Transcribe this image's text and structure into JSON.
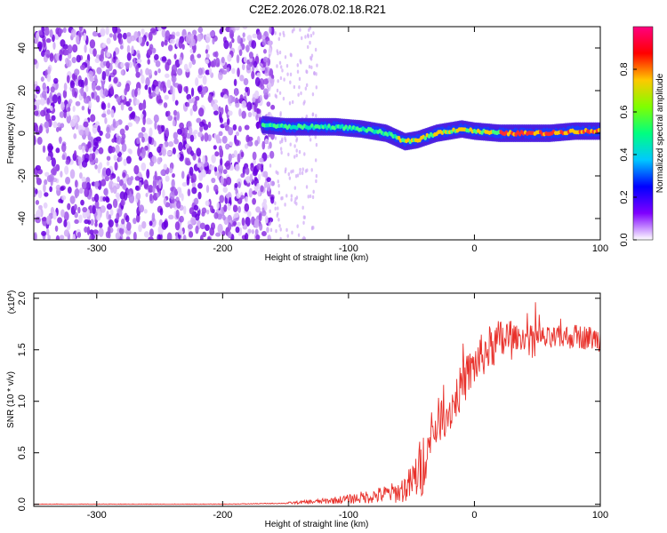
{
  "title": "C2E2.2026.078.02.18.R21",
  "chart_data": [
    {
      "type": "heatmap",
      "xlabel": "Height of straight line (km)",
      "ylabel": "Frequency (Hz)",
      "xlim": [
        -350,
        100
      ],
      "ylim": [
        -50,
        50
      ],
      "xticks": [
        -300,
        -200,
        -100,
        0,
        100
      ],
      "yticks": [
        -40,
        -20,
        0,
        20,
        40
      ],
      "colorbar": {
        "label": "Normalized spectral amplitude",
        "range": [
          0,
          1
        ],
        "ticks": [
          "0.0",
          "0.2",
          "0.4",
          "0.6",
          "0.8"
        ],
        "colors": [
          "#ffffff",
          "#7f00ff",
          "#0000ff",
          "#00c8ff",
          "#00ff80",
          "#80ff00",
          "#ffc800",
          "#ff0000",
          "#ff0080"
        ]
      },
      "ridge": {
        "x": [
          -168,
          -150,
          -130,
          -110,
          -90,
          -70,
          -55,
          -45,
          -30,
          -10,
          0,
          20,
          40,
          60,
          80,
          100
        ],
        "y": [
          4,
          3,
          3,
          3,
          2,
          0,
          -4,
          -3,
          0,
          2,
          1,
          0,
          0,
          0,
          1,
          1
        ]
      },
      "noise_region": [
        -350,
        -160
      ]
    },
    {
      "type": "line",
      "xlabel": "Height of straight line (km)",
      "ylabel": "SNR (10 * v/v)",
      "scale_label": "(x10",
      "scale_exponent": "4",
      "scale_suffix": ")",
      "xlim": [
        -350,
        100
      ],
      "ylim": [
        -0.02,
        2.05
      ],
      "xticks": [
        -300,
        -200,
        -100,
        0,
        100
      ],
      "yticks": [
        0.0,
        0.5,
        1.0,
        1.5,
        2.0
      ],
      "ytick_labels": [
        "0.0",
        "0.5",
        "1.0",
        "1.5",
        "2.0"
      ],
      "color": "#e8302a",
      "envelope": {
        "x": [
          -350,
          -200,
          -150,
          -120,
          -100,
          -80,
          -60,
          -50,
          -40,
          -35,
          -30,
          -20,
          -10,
          0,
          10,
          20,
          30,
          40,
          50,
          60,
          70,
          80,
          90,
          100
        ],
        "y": [
          0.0,
          0.0,
          0.01,
          0.03,
          0.05,
          0.08,
          0.12,
          0.2,
          0.4,
          0.6,
          0.8,
          0.9,
          1.15,
          1.35,
          1.5,
          1.58,
          1.62,
          1.62,
          1.62,
          1.6,
          1.62,
          1.63,
          1.62,
          1.6
        ]
      }
    }
  ]
}
